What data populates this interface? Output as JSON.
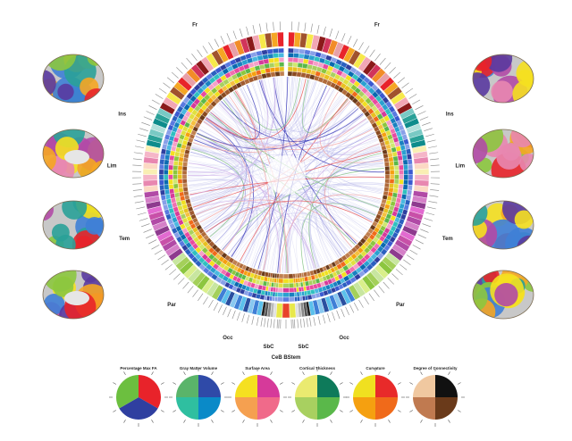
{
  "lobes": {
    "right": [
      "Fr",
      "Ins",
      "Lim",
      "Tem",
      "Par",
      "Occ",
      "SbC"
    ],
    "left": [
      "Fr",
      "Ins",
      "Lim",
      "Tem",
      "Par",
      "Occ",
      "SbC"
    ],
    "bottom": [
      "CeB",
      "BStem"
    ]
  },
  "lobe_colors": {
    "Fr": [
      "#e8232a",
      "#f5a623",
      "#a0522d",
      "#f7e94a",
      "#f2a7b5",
      "#8b1a1a",
      "#d1345b",
      "#f28c28",
      "#e8a0a8"
    ],
    "Ins": [
      "#79c9c4",
      "#2aa198",
      "#0e8c8c",
      "#b2e0dc"
    ],
    "Lim": [
      "#f9efb3",
      "#f5b6c8",
      "#e887b0",
      "#fcd9c4"
    ],
    "Tem": [
      "#b14aa6",
      "#d580c8",
      "#8e3a8e",
      "#e26ad0",
      "#c850a8"
    ],
    "Par": [
      "#c8e6a0",
      "#a4d05a",
      "#8cc63f",
      "#d9ef8b"
    ],
    "Occ": [
      "#3f7fd6",
      "#5bc0eb",
      "#2a4fa0",
      "#88c8f0"
    ],
    "SbC": [
      "#222222",
      "#555555",
      "#888888",
      "#bbbbbb",
      "#e0e0e0"
    ],
    "CeB": [
      "#e8422a"
    ],
    "BStem": [
      "#e8e84a"
    ]
  },
  "legends": [
    {
      "title": "Percentage Max FA",
      "colors": [
        "#e8232a",
        "#2f3fa0",
        "#6cbf3f"
      ]
    },
    {
      "title": "Gray Matter Volume",
      "colors": [
        "#2f4aa8",
        "#0a8ac8",
        "#2fbfa0",
        "#5ab46a"
      ]
    },
    {
      "title": "Surface Area",
      "colors": [
        "#d63a9a",
        "#f06a8a",
        "#f5a050",
        "#f5e020"
      ]
    },
    {
      "title": "Cortical Thickness",
      "colors": [
        "#0e7a5a",
        "#5ab84a",
        "#a8d060",
        "#eaea70"
      ]
    },
    {
      "title": "Curvature",
      "colors": [
        "#e82a2a",
        "#f06a1a",
        "#f5a010",
        "#f0e020"
      ]
    },
    {
      "title": "Degree of Connectivity",
      "colors": [
        "#111111",
        "#6a3a1a",
        "#c07a50",
        "#f0c8a0"
      ]
    }
  ],
  "chord_colors": [
    "#b8b8e8",
    "#c8c8f0",
    "#9a9ae0",
    "#3a3ab8",
    "#e85050",
    "#f0a0a0",
    "#80c080",
    "#d0b0e8"
  ]
}
